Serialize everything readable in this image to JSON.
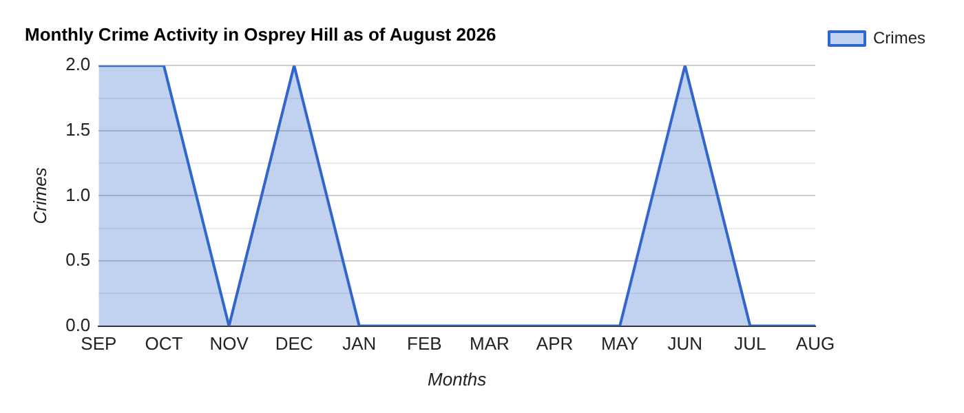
{
  "chart_data": {
    "type": "area",
    "title": "Monthly Crime Activity in Osprey Hill as of August 2026",
    "xlabel": "Months",
    "ylabel": "Crimes",
    "categories": [
      "SEP",
      "OCT",
      "NOV",
      "DEC",
      "JAN",
      "FEB",
      "MAR",
      "APR",
      "MAY",
      "JUN",
      "JUL",
      "AUG"
    ],
    "series": [
      {
        "name": "Crimes",
        "color": "#3366cc",
        "values": [
          2,
          2,
          0,
          2,
          0,
          0,
          0,
          0,
          0,
          2,
          0,
          0
        ]
      }
    ],
    "ylim": [
      0,
      2
    ],
    "yticks": [
      {
        "value": 0,
        "label": "0.0"
      },
      {
        "value": 0.25,
        "label": null
      },
      {
        "value": 0.5,
        "label": "0.5"
      },
      {
        "value": 0.75,
        "label": null
      },
      {
        "value": 1,
        "label": "1.0"
      },
      {
        "value": 1.25,
        "label": null
      },
      {
        "value": 1.5,
        "label": "1.5"
      },
      {
        "value": 1.75,
        "label": null
      },
      {
        "value": 2,
        "label": "2.0"
      }
    ],
    "grid": "y",
    "legend": "right"
  }
}
